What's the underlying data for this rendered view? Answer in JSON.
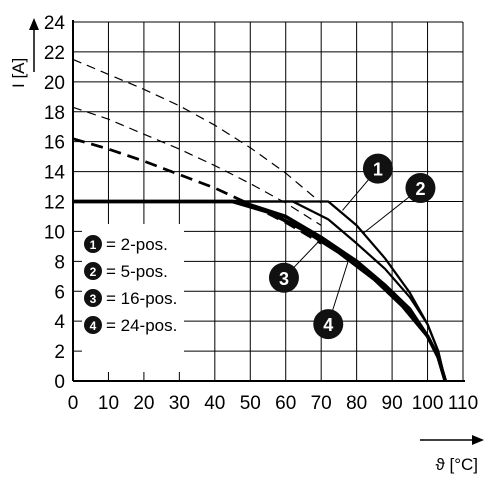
{
  "chart_data": {
    "type": "line",
    "xlabel": "ϑ [°C]",
    "ylabel": "I [A]",
    "xlim": [
      0,
      110
    ],
    "ylim": [
      0,
      24
    ],
    "x_ticks": [
      "0",
      "10",
      "20",
      "30",
      "40",
      "50",
      "60",
      "70",
      "80",
      "90",
      "100",
      "110"
    ],
    "y_ticks": [
      "0",
      "2",
      "4",
      "6",
      "8",
      "10",
      "12",
      "14",
      "16",
      "18",
      "20",
      "22",
      "24"
    ],
    "grid": true,
    "legend_position": "bottom-left",
    "legend": [
      {
        "num": "1",
        "label": "= 2-pos."
      },
      {
        "num": "2",
        "label": "= 5-pos."
      },
      {
        "num": "3",
        "label": "= 16-pos."
      },
      {
        "num": "4",
        "label": "= 24-pos."
      }
    ],
    "series": [
      {
        "callout": "1",
        "theoretical": {
          "x": [
            0,
            10,
            20,
            30,
            40,
            50,
            60,
            70
          ],
          "y": [
            21.5,
            20.5,
            19.5,
            18.4,
            17.1,
            15.6,
            13.9,
            11.9
          ]
        },
        "values": {
          "x": [
            0,
            72,
            80,
            88,
            95,
            100,
            103,
            105
          ],
          "y": [
            12,
            12,
            10.4,
            8.2,
            5.9,
            3.8,
            2.0,
            0
          ]
        }
      },
      {
        "callout": "2",
        "theoretical": {
          "x": [
            0,
            10,
            20,
            30,
            40,
            50,
            60,
            70
          ],
          "y": [
            18.3,
            17.5,
            16.5,
            15.5,
            14.4,
            13.2,
            11.9,
            10.4
          ]
        },
        "values": {
          "x": [
            0,
            62,
            72,
            80,
            88,
            95,
            100,
            103,
            105
          ],
          "y": [
            12,
            12,
            10.8,
            9.2,
            7.5,
            5.6,
            3.8,
            2.0,
            0
          ]
        }
      },
      {
        "callout": "3",
        "theoretical": {
          "x": [
            0,
            10,
            20,
            30,
            40,
            50,
            60,
            70
          ],
          "y": [
            16.2,
            15.5,
            14.7,
            13.8,
            12.9,
            11.8,
            10.6,
            9.2
          ]
        },
        "values": {
          "x": [
            0,
            47,
            60,
            70,
            80,
            88,
            95,
            100,
            103,
            105
          ],
          "y": [
            12,
            12,
            11,
            9.6,
            8.0,
            6.4,
            4.8,
            3.0,
            1.6,
            0
          ]
        }
      },
      {
        "callout": "4",
        "theoretical": {
          "x": [
            0,
            10,
            20,
            30,
            40,
            50,
            60
          ],
          "y": [
            16.2,
            15.5,
            14.7,
            13.8,
            12.9,
            11.8,
            10.6
          ]
        },
        "values": {
          "x": [
            0,
            45,
            55,
            65,
            75,
            85,
            93,
            100,
            103,
            105
          ],
          "y": [
            12,
            12,
            11.3,
            10.1,
            8.6,
            6.8,
            5.0,
            3.0,
            1.6,
            0
          ]
        }
      }
    ],
    "callouts": [
      {
        "num": "1",
        "target": [
          76,
          11.4
        ],
        "label_at": [
          86,
          14.2
        ]
      },
      {
        "num": "2",
        "target": [
          82,
          9.9
        ],
        "label_at": [
          98,
          12.9
        ]
      },
      {
        "num": "3",
        "target": [
          70,
          9.5
        ],
        "label_at": [
          59.5,
          6.9
        ]
      },
      {
        "num": "4",
        "target": [
          78,
          8.3
        ],
        "label_at": [
          72,
          3.8
        ]
      }
    ],
    "colors": {
      "line": "#000000",
      "grid": "#000000",
      "badge": "#111111"
    }
  }
}
